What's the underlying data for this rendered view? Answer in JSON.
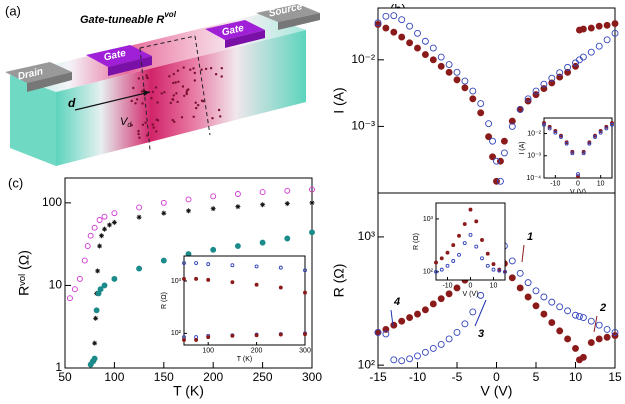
{
  "panels": [
    "(a)",
    "(b)",
    "(c)"
  ],
  "diagram": {
    "title": {
      "text": "Gate-tuneable R",
      "sup": "vol"
    },
    "gate_left": "Gate",
    "gate_right": "Gate",
    "drain": "Drain",
    "source": "Source",
    "distance": "d",
    "volume": {
      "text": "V",
      "sub": "d"
    }
  },
  "chart_data": [
    {
      "type": "scatter",
      "log_y": true,
      "ylabel": "I (A)",
      "xlim": [
        -15,
        15
      ],
      "ylim": [
        0.0001,
        0.06
      ],
      "yticks": [
        {
          "value": 0.001,
          "label": "10⁻³"
        },
        {
          "value": 0.01,
          "label": "10⁻²"
        }
      ],
      "series": [
        {
          "color": "#8b1a1a",
          "marker": "filled-circle",
          "x": [
            -15,
            -14,
            -13,
            -12,
            -11,
            -10,
            -9,
            -8,
            -7,
            -6,
            -5,
            -4,
            -3,
            -2,
            -1,
            -0.5,
            0,
            0.5,
            1,
            2,
            3,
            4,
            5,
            6,
            7,
            8,
            9,
            10,
            10.5,
            11,
            12,
            13,
            14,
            15
          ],
          "values": [
            0.034,
            0.03,
            0.026,
            0.022,
            0.018,
            0.015,
            0.012,
            0.01,
            0.008,
            0.0065,
            0.005,
            0.0038,
            0.0026,
            0.0016,
            0.0007,
            0.00035,
            0.00015,
            0.0003,
            0.0006,
            0.0012,
            0.0018,
            0.0024,
            0.003,
            0.0037,
            0.0045,
            0.0055,
            0.0065,
            0.008,
            0.028,
            0.029,
            0.03,
            0.032,
            0.033,
            0.035
          ]
        },
        {
          "color": "#3344bb",
          "marker": "open-circle",
          "x": [
            -15,
            -14,
            -13,
            -12,
            -11,
            -10,
            -9,
            -8,
            -7,
            -6,
            -5,
            -4,
            -3,
            -2,
            -1,
            -0.5,
            0,
            0.5,
            1,
            2,
            3,
            4,
            5,
            6,
            7,
            8,
            9,
            10,
            10.5,
            11,
            12,
            13,
            14,
            15
          ],
          "values": [
            0.036,
            0.045,
            0.046,
            0.04,
            0.032,
            0.025,
            0.019,
            0.015,
            0.011,
            0.0085,
            0.0065,
            0.0048,
            0.0034,
            0.0022,
            0.0011,
            0.0006,
            0.0003,
            0.00015,
            0.0004,
            0.001,
            0.0018,
            0.0026,
            0.0034,
            0.0043,
            0.0053,
            0.0064,
            0.0077,
            0.009,
            0.01,
            0.011,
            0.013,
            0.016,
            0.02,
            0.025
          ]
        }
      ]
    },
    {
      "type": "scatter",
      "log_y": true,
      "xlabel": "V (V)",
      "ylabel": "I (A)",
      "xlim": [
        -15,
        15
      ],
      "ylim": [
        0.0001,
        0.05
      ],
      "xticks": [
        -10,
        0,
        10
      ],
      "yticks": [
        {
          "value": 0.0001,
          "label": "10⁻⁴"
        },
        {
          "value": 0.001,
          "label": "10⁻³"
        },
        {
          "value": 0.01,
          "label": "10⁻²"
        }
      ],
      "series": [
        {
          "color": "#8b1a1a",
          "marker": "filled-circle",
          "x": [
            -15,
            -12.5,
            -10,
            -7.5,
            -5,
            -2.5,
            0,
            2.5,
            5,
            7.5,
            10,
            12.5,
            15
          ],
          "values": [
            0.03,
            0.02,
            0.013,
            0.008,
            0.004,
            0.0015,
            0.00012,
            0.0015,
            0.004,
            0.008,
            0.013,
            0.02,
            0.03
          ]
        },
        {
          "color": "#3344bb",
          "marker": "open-circle",
          "x": [
            -15,
            -12.5,
            -10,
            -7.5,
            -5,
            -2.5,
            0,
            2.5,
            5,
            7.5,
            10,
            12.5,
            15
          ],
          "values": [
            0.025,
            0.017,
            0.011,
            0.007,
            0.0035,
            0.0013,
            0.00015,
            0.0013,
            0.0035,
            0.007,
            0.011,
            0.017,
            0.025
          ]
        }
      ]
    },
    {
      "type": "scatter",
      "log_y": true,
      "xlabel": "V (V)",
      "ylabel": "R (Ω)",
      "xlim": [
        -15,
        15
      ],
      "ylim": [
        95,
        2200
      ],
      "xticks": [
        -15,
        -10,
        -5,
        0,
        5,
        10,
        15
      ],
      "yticks": [
        {
          "value": 100,
          "label": "10²"
        },
        {
          "value": 1000,
          "label": "10³"
        }
      ],
      "annotations": [
        {
          "text": "1",
          "color": "#8b1a1a"
        },
        {
          "text": "2",
          "color": "#8b1a1a"
        },
        {
          "text": "3",
          "color": "#2233aa"
        },
        {
          "text": "4",
          "color": "#2233aa"
        }
      ],
      "series": [
        {
          "color": "#8b1a1a",
          "marker": "filled-circle",
          "x": [
            -15,
            -14,
            -13,
            -12,
            -11,
            -10,
            -9,
            -8,
            -7,
            -6,
            -5,
            -4,
            -3,
            -2,
            -1,
            -0.5,
            0,
            0.5,
            1,
            2,
            3,
            4,
            5,
            6,
            7,
            8,
            9,
            10,
            10.5,
            11,
            12,
            13,
            14,
            15
          ],
          "values": [
            180,
            190,
            205,
            220,
            235,
            250,
            270,
            300,
            330,
            360,
            400,
            460,
            530,
            620,
            720,
            760,
            800,
            700,
            620,
            480,
            400,
            340,
            290,
            250,
            215,
            185,
            160,
            135,
            110,
            115,
            150,
            160,
            165,
            170
          ]
        },
        {
          "color": "#3344bb",
          "marker": "open-circle",
          "x": [
            -15,
            -14,
            -13,
            -12,
            -11,
            -10,
            -9,
            -8,
            -7,
            -6,
            -5,
            -4,
            -3,
            -2,
            -1,
            -0.5,
            0,
            0.5,
            1,
            2,
            3,
            4,
            5,
            6,
            7,
            8,
            9,
            10,
            10.5,
            11,
            12,
            13,
            14,
            15
          ],
          "values": [
            180,
            175,
            110,
            108,
            112,
            118,
            126,
            135,
            145,
            160,
            180,
            210,
            260,
            350,
            550,
            800,
            1100,
            1000,
            850,
            650,
            520,
            440,
            380,
            340,
            310,
            285,
            265,
            245,
            240,
            235,
            220,
            205,
            190,
            180
          ]
        }
      ]
    },
    {
      "type": "scatter",
      "log_y": true,
      "xlabel": "V (V)",
      "ylabel": "R (Ω)",
      "xlim": [
        -15,
        15
      ],
      "ylim": [
        70,
        2000
      ],
      "xticks": [
        -10,
        0,
        10
      ],
      "yticks": [
        {
          "value": 100,
          "label": "10²"
        },
        {
          "value": 1000,
          "label": "10³"
        }
      ],
      "series": [
        {
          "color": "#8b1a1a",
          "marker": "filled-circle",
          "x": [
            -15,
            -12.5,
            -10,
            -7.5,
            -5,
            -2.5,
            0,
            2.5,
            5,
            7.5,
            10,
            12.5,
            15
          ],
          "values": [
            150,
            180,
            230,
            320,
            480,
            800,
            1500,
            900,
            400,
            220,
            140,
            110,
            100
          ]
        },
        {
          "color": "#3344bb",
          "marker": "open-circle",
          "x": [
            -15,
            -12.5,
            -10,
            -7.5,
            -5,
            -2.5,
            0,
            2.5,
            5,
            7.5,
            10,
            12.5,
            15
          ],
          "values": [
            100,
            110,
            130,
            160,
            210,
            350,
            500,
            300,
            180,
            130,
            110,
            105,
            100
          ]
        }
      ]
    },
    {
      "type": "scatter",
      "log_y": true,
      "xlabel": "T (K)",
      "ylabel": "Rᵛᵒˡ (Ω)",
      "xlim": [
        50,
        300
      ],
      "ylim": [
        1,
        200
      ],
      "xticks": [
        50,
        100,
        150,
        200,
        250,
        300
      ],
      "yticks": [
        1,
        10,
        100
      ],
      "series": [
        {
          "color": "#d030d0",
          "marker": "open-circle",
          "x": [
            55,
            60,
            65,
            70,
            73,
            76,
            80,
            85,
            90,
            100,
            125,
            150,
            175,
            200,
            225,
            250,
            275,
            300
          ],
          "values": [
            7,
            9,
            12,
            20,
            30,
            40,
            50,
            62,
            68,
            75,
            88,
            100,
            110,
            120,
            128,
            135,
            140,
            145
          ]
        },
        {
          "color": "#111111",
          "marker": "star",
          "x": [
            79,
            80,
            81,
            82,
            83,
            85,
            87,
            90,
            95,
            100,
            125,
            150,
            175,
            200,
            225,
            250,
            275,
            300
          ],
          "values": [
            1.2,
            2,
            4,
            8,
            15,
            30,
            40,
            48,
            54,
            58,
            67,
            75,
            80,
            85,
            90,
            95,
            98,
            100
          ]
        },
        {
          "color": "#1a8a8a",
          "marker": "filled-circle",
          "x": [
            76,
            78,
            80,
            82,
            84,
            86,
            90,
            100,
            125,
            150,
            175,
            200,
            225,
            250,
            275,
            300
          ],
          "values": [
            1.1,
            1.2,
            1.3,
            5,
            8,
            9,
            10,
            12,
            16,
            20,
            24,
            27,
            30,
            33,
            37,
            44
          ]
        }
      ]
    },
    {
      "type": "scatter",
      "log_y": true,
      "xlabel": "T (K)",
      "ylabel": "R (Ω)",
      "xlim": [
        50,
        300
      ],
      "ylim": [
        60,
        3000
      ],
      "xticks": [
        100,
        200,
        300
      ],
      "yticks": [
        {
          "value": 100,
          "label": "10²"
        },
        {
          "value": 1000,
          "label": "10³"
        }
      ],
      "series": [
        {
          "color": "#3344bb",
          "marker": "open-circle",
          "x": [
            50,
            75,
            100,
            150,
            200,
            250,
            300
          ],
          "values": [
            2200,
            2200,
            2100,
            2000,
            1900,
            1800,
            1600
          ]
        },
        {
          "color": "#8b1a1a",
          "marker": "filled-circle",
          "x": [
            50,
            75,
            100,
            150,
            200,
            250,
            300
          ],
          "values": [
            1100,
            1100,
            1050,
            950,
            850,
            750,
            600
          ]
        },
        {
          "color": "#3344bb",
          "marker": "open-circle",
          "x": [
            50,
            75,
            100,
            150,
            200,
            250,
            300
          ],
          "values": [
            85,
            85,
            90,
            92,
            95,
            97,
            100
          ]
        },
        {
          "color": "#8b1a1a",
          "marker": "filled-circle",
          "x": [
            50,
            75,
            100,
            150,
            200,
            250,
            300
          ],
          "values": [
            75,
            75,
            85,
            90,
            92,
            95,
            97
          ]
        }
      ]
    }
  ]
}
